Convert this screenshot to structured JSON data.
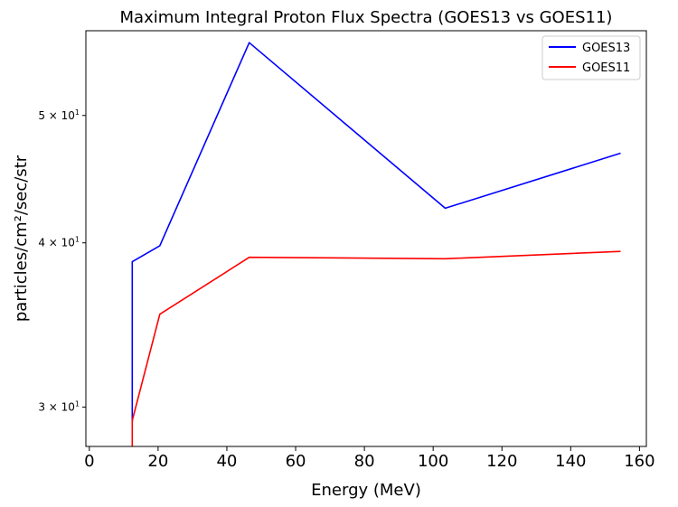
{
  "chart_data": {
    "type": "line",
    "title": "Maximum Integral Proton Flux Spectra (GOES13 vs GOES11)",
    "xlabel": "Energy (MeV)",
    "ylabel": "particles/cm²/sec/str",
    "xlim": [
      -1,
      162
    ],
    "ylim": [
      28,
      58
    ],
    "yscale": "log",
    "grid": false,
    "legend_position": "top-right",
    "x_ticks": [
      0,
      20,
      40,
      60,
      80,
      100,
      120,
      140,
      160
    ],
    "x_tick_labels": [
      "0",
      "20",
      "40",
      "60",
      "80",
      "100",
      "120",
      "140",
      "160"
    ],
    "y_ticks": [
      30,
      40,
      50
    ],
    "y_tick_labels": [
      {
        "base": "3 × 10",
        "exp": "1"
      },
      {
        "base": "4 × 10",
        "exp": "1"
      },
      {
        "base": "5 × 10",
        "exp": "1"
      }
    ],
    "series": [
      {
        "name": "GOES13",
        "color": "#0000ff",
        "x": [
          12.5,
          12.5,
          20.5,
          46.5,
          103.5,
          154.5
        ],
        "y": [
          29.2,
          38.7,
          39.8,
          56.8,
          42.5,
          46.8
        ]
      },
      {
        "name": "GOES11",
        "color": "#ff0000",
        "x": [
          12.5,
          12.5,
          20.5,
          46.5,
          103.5,
          154.5
        ],
        "y": [
          28.0,
          29.3,
          35.3,
          39.0,
          38.9,
          39.4
        ]
      }
    ]
  }
}
